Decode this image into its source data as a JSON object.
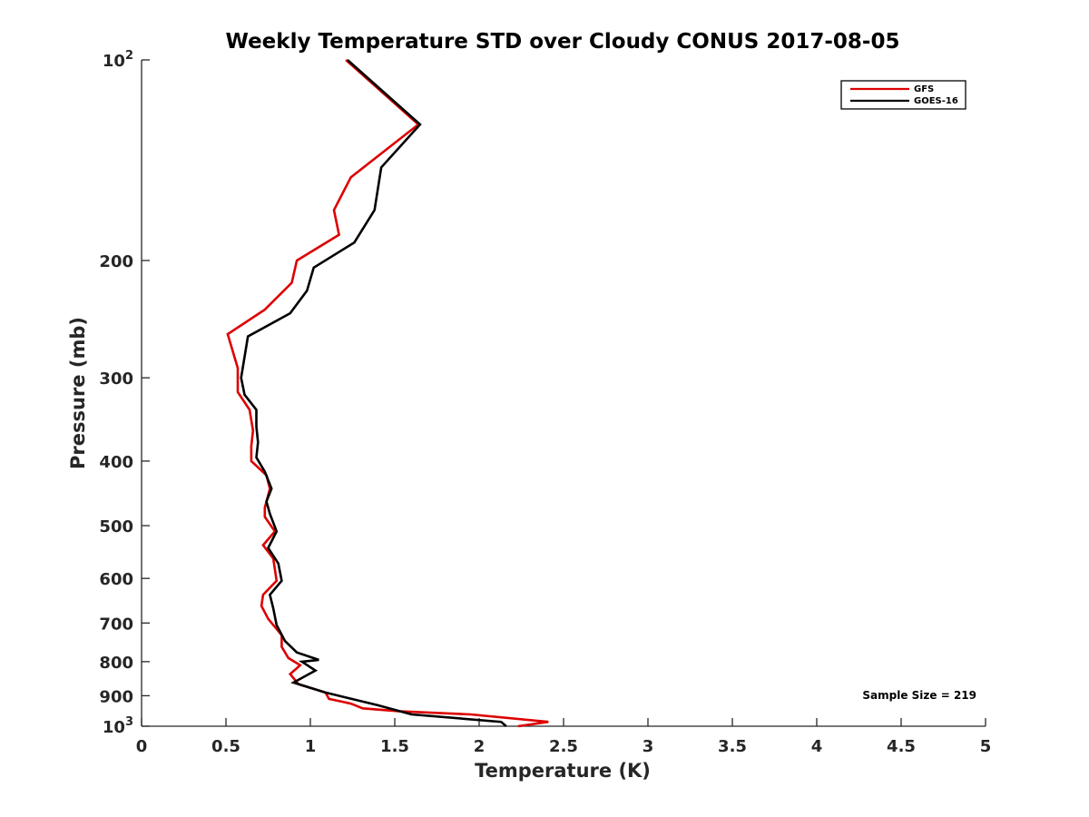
{
  "chart_data": {
    "type": "line",
    "title": "Weekly Temperature STD over Cloudy CONUS 2017-08-05",
    "xlabel": "Temperature (K)",
    "ylabel": "Pressure (mb)",
    "xlim": [
      0,
      5
    ],
    "ylim": [
      100,
      1000
    ],
    "y_scale": "log",
    "y_reversed": true,
    "grid": false,
    "legend_position": "top-right",
    "x_ticks": [
      "0",
      "0.5",
      "1",
      "1.5",
      "2",
      "2.5",
      "3",
      "3.5",
      "4",
      "4.5",
      "5"
    ],
    "y_ticks": [
      {
        "value": 100,
        "base": "10",
        "exp": "2"
      },
      {
        "value": 200,
        "label": "200"
      },
      {
        "value": 300,
        "label": "300"
      },
      {
        "value": 400,
        "label": "400"
      },
      {
        "value": 500,
        "label": "500"
      },
      {
        "value": 600,
        "label": "600"
      },
      {
        "value": 700,
        "label": "700"
      },
      {
        "value": 800,
        "label": "800"
      },
      {
        "value": 900,
        "label": "900"
      },
      {
        "value": 1000,
        "base": "10",
        "exp": "3"
      }
    ],
    "annotation": "Sample Size = 219",
    "series": [
      {
        "name": "GFS",
        "color": "#dd0000",
        "points": [
          [
            1.21,
            100
          ],
          [
            1.64,
            125
          ],
          [
            1.24,
            150
          ],
          [
            1.14,
            168
          ],
          [
            1.17,
            183
          ],
          [
            0.92,
            200
          ],
          [
            0.89,
            216
          ],
          [
            0.73,
            237
          ],
          [
            0.51,
            258
          ],
          [
            0.57,
            290
          ],
          [
            0.57,
            315
          ],
          [
            0.64,
            335
          ],
          [
            0.66,
            360
          ],
          [
            0.65,
            380
          ],
          [
            0.65,
            400
          ],
          [
            0.74,
            420
          ],
          [
            0.76,
            440
          ],
          [
            0.73,
            470
          ],
          [
            0.73,
            485
          ],
          [
            0.79,
            510
          ],
          [
            0.72,
            535
          ],
          [
            0.78,
            560
          ],
          [
            0.8,
            605
          ],
          [
            0.72,
            635
          ],
          [
            0.71,
            660
          ],
          [
            0.75,
            690
          ],
          [
            0.83,
            730
          ],
          [
            0.83,
            760
          ],
          [
            0.87,
            790
          ],
          [
            0.94,
            810
          ],
          [
            0.88,
            835
          ],
          [
            0.93,
            865
          ],
          [
            1.09,
            890
          ],
          [
            1.11,
            910
          ],
          [
            1.24,
            925
          ],
          [
            1.31,
            940
          ],
          [
            1.53,
            950
          ],
          [
            1.95,
            960
          ],
          [
            2.41,
            985
          ],
          [
            2.23,
            1000
          ]
        ]
      },
      {
        "name": "GOES-16",
        "color": "#000000",
        "points": [
          [
            1.22,
            100
          ],
          [
            1.65,
            125
          ],
          [
            1.42,
            145
          ],
          [
            1.38,
            168
          ],
          [
            1.26,
            188
          ],
          [
            1.02,
            205
          ],
          [
            0.98,
            222
          ],
          [
            0.88,
            240
          ],
          [
            0.63,
            260
          ],
          [
            0.59,
            300
          ],
          [
            0.61,
            318
          ],
          [
            0.68,
            335
          ],
          [
            0.68,
            355
          ],
          [
            0.69,
            375
          ],
          [
            0.68,
            395
          ],
          [
            0.73,
            415
          ],
          [
            0.77,
            440
          ],
          [
            0.74,
            460
          ],
          [
            0.76,
            480
          ],
          [
            0.8,
            510
          ],
          [
            0.75,
            540
          ],
          [
            0.81,
            570
          ],
          [
            0.83,
            605
          ],
          [
            0.76,
            635
          ],
          [
            0.78,
            665
          ],
          [
            0.8,
            705
          ],
          [
            0.85,
            745
          ],
          [
            0.92,
            775
          ],
          [
            1.05,
            795
          ],
          [
            0.95,
            800
          ],
          [
            1.03,
            825
          ],
          [
            0.9,
            860
          ],
          [
            1.09,
            890
          ],
          [
            1.4,
            930
          ],
          [
            1.6,
            960
          ],
          [
            2.13,
            985
          ],
          [
            2.16,
            1000
          ]
        ]
      }
    ]
  }
}
